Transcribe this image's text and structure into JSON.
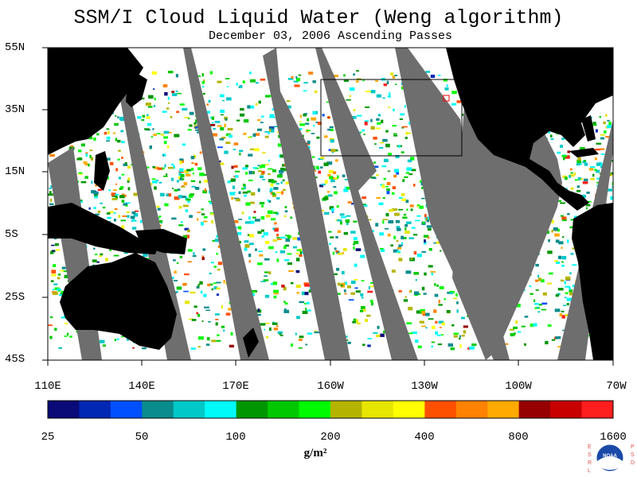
{
  "title": "SSM/I Cloud Liquid Water (Weng algorithm)",
  "subtitle": "December 03, 2006  Ascending Passes",
  "lat_labels": [
    "55N",
    "35N",
    "15N",
    "5S",
    "25S",
    "45S"
  ],
  "lon_labels": [
    "110E",
    "140E",
    "170E",
    "160W",
    "130W",
    "100W",
    "70W"
  ],
  "colorbar": {
    "tick_labels": [
      "25",
      "50",
      "100",
      "200",
      "400",
      "800",
      "1600"
    ],
    "unit": "g/m²",
    "colors": [
      "#0a0a78",
      "#0028b4",
      "#0050ff",
      "#0a8c8c",
      "#00c8c8",
      "#00fafa",
      "#009600",
      "#00c800",
      "#00fa00",
      "#b4b400",
      "#e6e600",
      "#ffff00",
      "#ff5000",
      "#ff8200",
      "#ffaa00",
      "#960000",
      "#c80000",
      "#ff1e1e"
    ]
  },
  "colors": {
    "swath_gap": "#6e6e6e",
    "land": "#000000",
    "background": "#ffffff"
  },
  "logo": {
    "left_text": "ESRL",
    "right_text": "PSD",
    "center_text": "NOAA"
  }
}
